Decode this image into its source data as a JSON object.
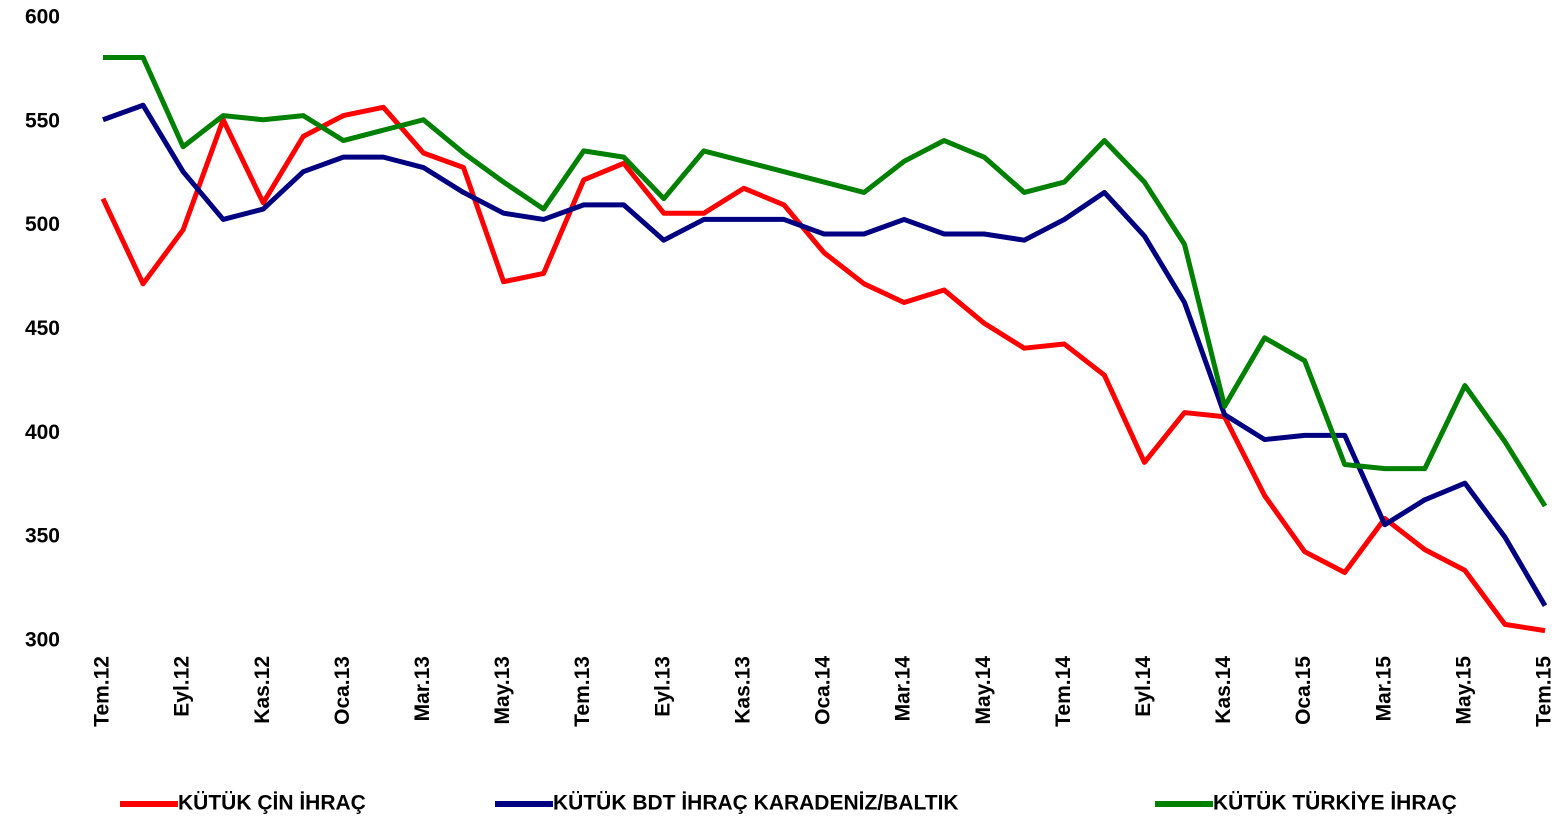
{
  "chart_data": {
    "type": "line",
    "categories": [
      "Tem.12",
      null,
      "Eyl.12",
      null,
      "Kas.12",
      null,
      "Oca.13",
      null,
      "Mar.13",
      null,
      "May.13",
      null,
      "Tem.13",
      null,
      "Eyl.13",
      null,
      "Kas.13",
      null,
      "Oca.14",
      null,
      "Mar.14",
      null,
      "May.14",
      null,
      "Tem.14",
      null,
      "Eyl.14",
      null,
      "Kas.14",
      null,
      "Oca.15",
      null,
      "Mar.15",
      null,
      "May.15",
      null,
      "Tem.15"
    ],
    "series": [
      {
        "name": "KÜTÜK ÇİN İHRAÇ",
        "color": "#ff0000",
        "values": [
          513,
          472,
          498,
          551,
          511,
          543,
          553,
          557,
          535,
          528,
          473,
          477,
          522,
          530,
          506,
          506,
          518,
          510,
          487,
          472,
          463,
          469,
          453,
          441,
          443,
          428,
          386,
          410,
          408,
          370,
          343,
          333,
          359,
          344,
          334,
          308,
          305
        ]
      },
      {
        "name": "KÜTÜK BDT İHRAÇ KARADENİZ/BALTIK",
        "color": "#000080",
        "values": [
          551,
          558,
          526,
          503,
          508,
          526,
          533,
          533,
          528,
          516,
          506,
          503,
          510,
          510,
          493,
          503,
          503,
          503,
          496,
          496,
          503,
          496,
          496,
          493,
          503,
          516,
          495,
          463,
          409,
          397,
          399,
          399,
          356,
          368,
          376,
          350,
          317
        ]
      },
      {
        "name": "KÜTÜK TÜRKİYE İHRAÇ",
        "color": "#008000",
        "values": [
          581,
          581,
          538,
          553,
          551,
          553,
          541,
          546,
          551,
          535,
          521,
          508,
          536,
          533,
          513,
          536,
          531,
          526,
          521,
          516,
          531,
          541,
          533,
          516,
          521,
          541,
          521,
          491,
          413,
          446,
          435,
          385,
          383,
          383,
          423,
          396,
          365
        ]
      }
    ],
    "ylim": [
      300,
      600
    ],
    "yticks": [
      300,
      350,
      400,
      450,
      500,
      550,
      600
    ],
    "grid": false,
    "legend": "bottom"
  }
}
